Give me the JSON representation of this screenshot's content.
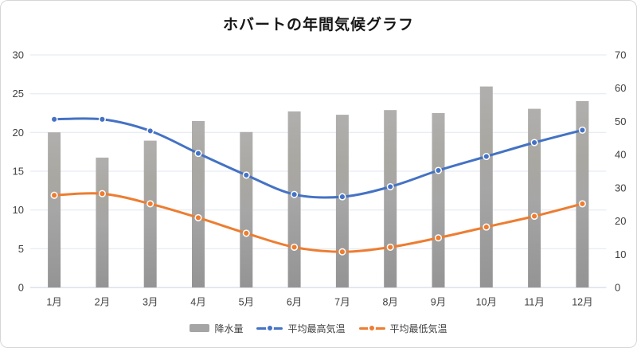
{
  "title": "ホバートの年間気候グラフ",
  "colors": {
    "gridline": "#e1e7f0",
    "axis_line": "#c9d0db",
    "axis_text": "#404040",
    "title_text": "#171717",
    "frame_border": "#d6d6d6",
    "background": "#ffffff"
  },
  "chart_data": {
    "type": "combo bar + line",
    "title": "ホバートの年間気候グラフ",
    "categories": [
      "1月",
      "2月",
      "3月",
      "4月",
      "5月",
      "6月",
      "7月",
      "8月",
      "9月",
      "10月",
      "11月",
      "12月"
    ],
    "series": [
      {
        "name": "降水量",
        "type": "bar",
        "axis": "right",
        "color": "#a5a5a5",
        "values": [
          46.7,
          39.1,
          44.2,
          50.1,
          46.8,
          53.0,
          52.0,
          53.4,
          52.5,
          60.5,
          53.8,
          56.1
        ]
      },
      {
        "name": "平均最高気温",
        "type": "line",
        "axis": "left",
        "color": "#4472c4",
        "values": [
          21.7,
          21.7,
          20.2,
          17.3,
          14.5,
          12.0,
          11.7,
          13.0,
          15.1,
          16.9,
          18.7,
          20.3
        ]
      },
      {
        "name": "平均最低気温",
        "type": "line",
        "axis": "left",
        "color": "#ed7d31",
        "values": [
          11.9,
          12.1,
          10.8,
          9.0,
          7.0,
          5.2,
          4.6,
          5.2,
          6.4,
          7.8,
          9.2,
          10.8
        ]
      }
    ],
    "left_axis": {
      "min": 0,
      "max": 30,
      "ticks": [
        0,
        5,
        10,
        15,
        20,
        25,
        30
      ]
    },
    "right_axis": {
      "min": 0,
      "max": 70,
      "ticks": [
        0,
        10,
        20,
        30,
        40,
        50,
        60,
        70
      ]
    },
    "grid": true,
    "smooth_lines": true,
    "legend_position": "bottom"
  }
}
